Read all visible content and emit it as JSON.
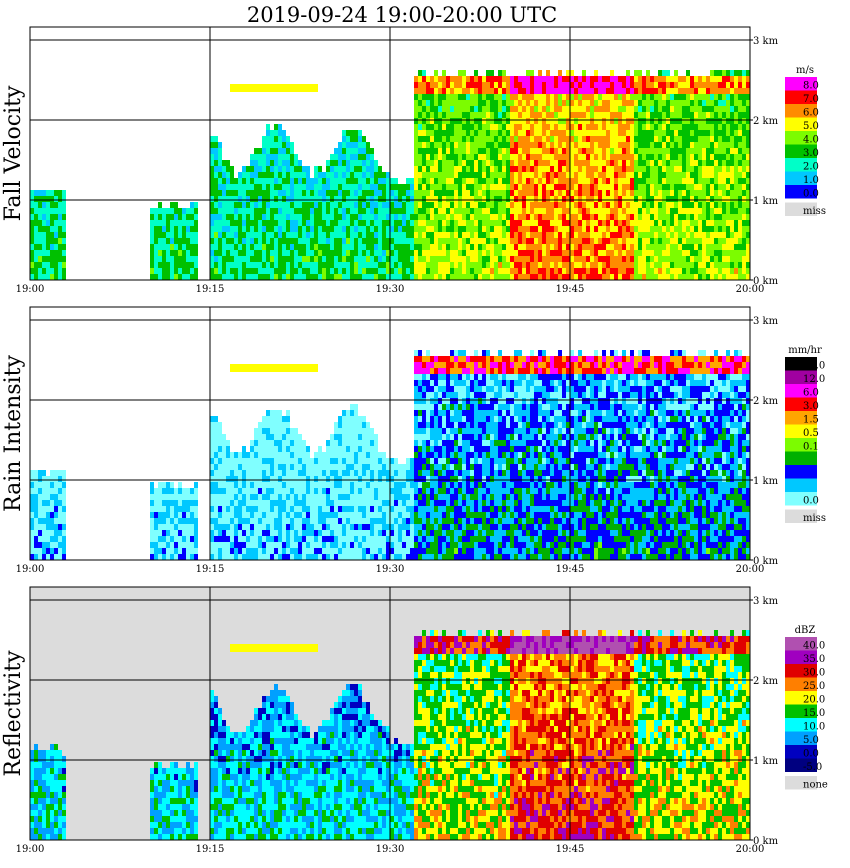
{
  "chart_data": {
    "title": "2019-09-24   19:00-20:00 UTC",
    "type": "heatmap",
    "x_ticks": [
      "19:00",
      "19:15",
      "19:30",
      "19:45",
      "20:00"
    ],
    "y_ticks": [
      "0 km",
      "1 km",
      "2 km",
      "3 km"
    ],
    "ylim_km": [
      0,
      3
    ],
    "grid": true,
    "panels": [
      {
        "ylabel": "Fall Velocity",
        "unit": "m/s",
        "legend": [
          {
            "label": "8.0",
            "color": "#ff00ff"
          },
          {
            "label": "7.0",
            "color": "#ff0000"
          },
          {
            "label": "6.0",
            "color": "#ff8c00"
          },
          {
            "label": "5.0",
            "color": "#ffff00"
          },
          {
            "label": "4.0",
            "color": "#7cfc00"
          },
          {
            "label": "3.0",
            "color": "#00c000"
          },
          {
            "label": "2.0",
            "color": "#00ffc8"
          },
          {
            "label": "1.0",
            "color": "#00c8ff"
          },
          {
            "label": "0.0",
            "color": "#0000ff"
          },
          {
            "label": "miss",
            "color": "#dcdcdc"
          }
        ]
      },
      {
        "ylabel": "Rain Intensity",
        "unit": "mm/hr",
        "legend": [
          {
            "label": "48.0",
            "color": "#000000"
          },
          {
            "label": "12.0",
            "color": "#a000a0"
          },
          {
            "label": "6.0",
            "color": "#ff00ff"
          },
          {
            "label": "3.0",
            "color": "#ff0000"
          },
          {
            "label": "1.5",
            "color": "#ffa500"
          },
          {
            "label": "0.5",
            "color": "#ffff00"
          },
          {
            "label": "0.1",
            "color": "#7cfc00"
          },
          {
            "label": "",
            "color": "#00b000"
          },
          {
            "label": "",
            "color": "#0000ff"
          },
          {
            "label": "",
            "color": "#00c8ff"
          },
          {
            "label": "0.0",
            "color": "#80ffff"
          },
          {
            "label": "miss",
            "color": "#dcdcdc"
          }
        ]
      },
      {
        "ylabel": "Reflectivity",
        "unit": "dBZ",
        "legend": [
          {
            "label": "40.0",
            "color": "#b050b0"
          },
          {
            "label": "35.0",
            "color": "#a000c0"
          },
          {
            "label": "30.0",
            "color": "#e00000"
          },
          {
            "label": "25.0",
            "color": "#ff7f00"
          },
          {
            "label": "20.0",
            "color": "#ffff00"
          },
          {
            "label": "15.0",
            "color": "#00c000"
          },
          {
            "label": "10.0",
            "color": "#00ffff"
          },
          {
            "label": "5.0",
            "color": "#00a0ff"
          },
          {
            "label": "0.0",
            "color": "#0000c0"
          },
          {
            "label": "-5.0",
            "color": "#000080"
          },
          {
            "label": "none",
            "color": "#dcdcdc"
          }
        ]
      }
    ],
    "features": [
      {
        "name": "melting layer band",
        "height_km": 2.4,
        "from": "19:32",
        "to": "20:00"
      },
      {
        "name": "isolated upper echo",
        "height_km": 2.4,
        "from": "19:17",
        "to": "19:24"
      },
      {
        "name": "heavy core",
        "time": "19:45",
        "height_km": 2.35
      }
    ]
  }
}
